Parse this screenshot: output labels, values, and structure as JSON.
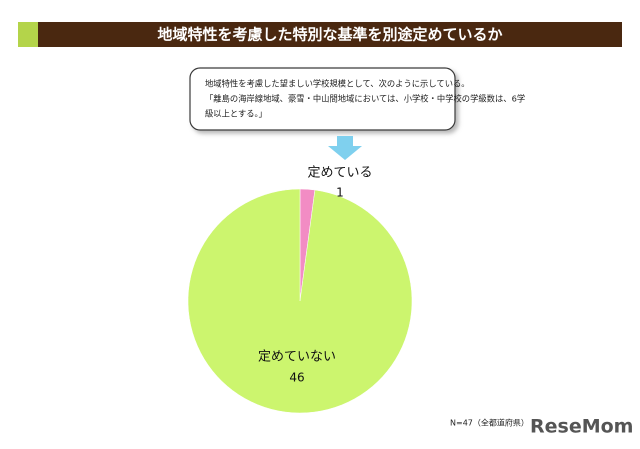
{
  "chart_data": {
    "type": "pie",
    "title": "地域特性を考慮した特別な基準を別途定めているか",
    "annotation_lines": [
      "地域特性を考慮した望ましい学校規模として、次のように示している。",
      "「離島の海岸線地域、豪雪・中山間地域においては、小学校・中学校の学級数は、6学",
      "級以上とする。」"
    ],
    "categories": [
      "定めている",
      "定めていない"
    ],
    "values": [
      1,
      46
    ],
    "colors": [
      "#f28cc4",
      "#ccf56e"
    ],
    "note": "N=47（全都道府県）",
    "watermark": "ReseMom"
  }
}
